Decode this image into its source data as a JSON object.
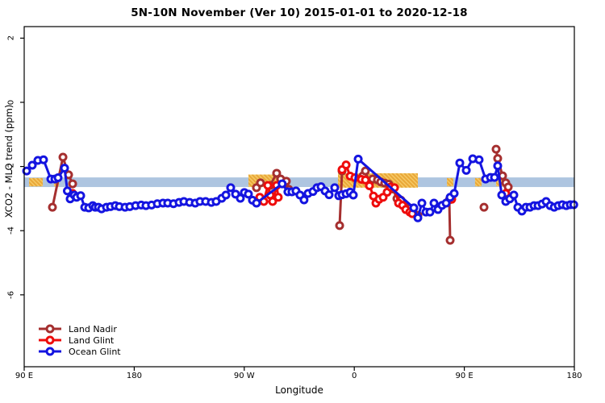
{
  "title": "5N-10N November (Ver 10)   2015-01-01 to 2020-12-18",
  "chart_data": {
    "type": "line",
    "title": "5N-10N November (Ver 10)   2015-01-01 to 2020-12-18",
    "xlabel": "Longitude",
    "ylabel": "XCO2 - MLO trend (ppm)",
    "x_axis": {
      "range": [
        90,
        540
      ],
      "note": "longitude axis spans 450 deg, wrapping: 90E,180,90W,0,90E,180",
      "ticks": [
        {
          "value": 90,
          "label": "90 E"
        },
        {
          "value": 180,
          "label": "180"
        },
        {
          "value": 270,
          "label": "90 W"
        },
        {
          "value": 360,
          "label": "0"
        },
        {
          "value": 450,
          "label": "90 E"
        },
        {
          "value": 540,
          "label": "180"
        }
      ]
    },
    "y_axis": {
      "range": [
        -8.24,
        2.36
      ],
      "ticks": [
        {
          "value": 2,
          "label": "2"
        },
        {
          "value": 0,
          "label": "0"
        },
        {
          "value": -2,
          "label": "-2"
        },
        {
          "value": -4,
          "label": "-4"
        },
        {
          "value": -6,
          "label": "-6"
        }
      ]
    },
    "grid": false,
    "legend_position": "bottom-left-inside",
    "reference_band": {
      "y_from": -2.34,
      "y_to": -2.64,
      "color": "#aec5e0"
    },
    "highlight_segments": {
      "color": "#f5c966",
      "hatch_color": "#e9a838",
      "segments": [
        {
          "from": 94.0,
          "to": 105.2,
          "top": -2.36,
          "bottom": -2.62
        },
        {
          "from": 114.4,
          "to": 118.4,
          "top": -2.36,
          "bottom": -2.62
        },
        {
          "from": 273.4,
          "to": 296.5,
          "top": -2.25,
          "bottom": -2.64
        },
        {
          "from": 346.7,
          "to": 412.0,
          "top": -2.21,
          "bottom": -2.66
        },
        {
          "from": 435.8,
          "to": 441.0,
          "top": -2.36,
          "bottom": -2.62
        },
        {
          "from": 458.8,
          "to": 464.1,
          "top": -2.36,
          "bottom": -2.62
        },
        {
          "from": 476.0,
          "to": 483.5,
          "top": -2.36,
          "bottom": -2.62
        }
      ]
    },
    "series": [
      {
        "name": "Land Nadir",
        "color": "#a52f2f",
        "groups": [
          [
            [
              113.1,
              -3.27
            ],
            [
              121.7,
              -1.71
            ],
            [
              126.3,
              -2.26
            ],
            [
              129.6,
              -2.54
            ]
          ],
          [
            [
              280.0,
              -2.66
            ],
            [
              283.3,
              -2.51
            ],
            [
              291.2,
              -2.59
            ],
            [
              296.5,
              -2.21
            ],
            [
              299.8,
              -2.39
            ],
            [
              304.4,
              -2.46
            ],
            [
              306.4,
              -2.71
            ]
          ],
          [
            [
              348.0,
              -3.84
            ],
            [
              350.0,
              -2.14
            ]
          ],
          [
            [
              367.1,
              -2.29
            ],
            [
              369.1,
              -2.14
            ],
            [
              372.4,
              -2.51
            ],
            [
              375.0,
              -2.39
            ],
            [
              379.0,
              -2.42
            ],
            [
              381.6,
              -2.48
            ],
            [
              384.9,
              -2.52
            ],
            [
              388.2,
              -2.55
            ],
            [
              391.6,
              -2.7
            ],
            [
              394.9,
              -3.0
            ],
            [
              398.2,
              -3.05
            ],
            [
              402.1,
              -3.27
            ],
            [
              405.4,
              -3.3
            ],
            [
              408.7,
              -3.47
            ],
            [
              412.0,
              -3.52
            ]
          ],
          [
            [
              437.7,
              -3.04
            ],
            [
              438.4,
              -4.3
            ]
          ],
          [
            [
              466.1,
              -3.27
            ]
          ],
          [
            [
              476.0,
              -1.46
            ],
            [
              477.3,
              -1.75
            ],
            [
              481.3,
              -2.29
            ],
            [
              483.9,
              -2.51
            ],
            [
              485.9,
              -2.64
            ]
          ]
        ]
      },
      {
        "name": "Land Glint",
        "color": "#ee0c0c",
        "groups": [
          [
            [
              129.6,
              -2.84
            ]
          ],
          [
            [
              282.7,
              -2.96
            ],
            [
              286.0,
              -3.09
            ],
            [
              289.3,
              -2.59
            ],
            [
              291.2,
              -2.89
            ],
            [
              293.2,
              -3.09
            ],
            [
              296.5,
              -2.59
            ],
            [
              297.8,
              -2.96
            ]
          ],
          [
            [
              350.0,
              -2.1
            ],
            [
              353.3,
              -1.95
            ],
            [
              356.6,
              -2.3
            ],
            [
              360.5,
              -2.35
            ],
            [
              365.8,
              -2.4
            ],
            [
              369.1,
              -2.42
            ],
            [
              372.4,
              -2.6
            ],
            [
              375.7,
              -2.92
            ],
            [
              377.7,
              -3.14
            ],
            [
              380.3,
              -3.02
            ],
            [
              383.6,
              -2.96
            ],
            [
              386.9,
              -2.8
            ],
            [
              389.6,
              -2.64
            ],
            [
              392.9,
              -2.66
            ],
            [
              396.2,
              -3.14
            ],
            [
              399.5,
              -3.21
            ],
            [
              402.1,
              -3.34
            ],
            [
              405.4,
              -3.42
            ],
            [
              407.4,
              -3.47
            ]
          ],
          [
            [
              439.7,
              -3.02
            ]
          ],
          [
            [
              483.9,
              -2.84
            ]
          ]
        ]
      },
      {
        "name": "Ocean Glint",
        "color": "#1414e0",
        "groups": [
          [
            [
              92.0,
              -2.14
            ],
            [
              96.6,
              -1.96
            ],
            [
              101.2,
              -1.81
            ],
            [
              105.8,
              -1.79
            ],
            [
              111.8,
              -2.39
            ],
            [
              115.1,
              -2.39
            ],
            [
              117.7,
              -2.35
            ],
            [
              123.0,
              -2.05
            ],
            [
              125.3,
              -2.76
            ],
            [
              127.6,
              -3.01
            ],
            [
              130.9,
              -2.89
            ],
            [
              132.9,
              -2.96
            ],
            [
              136.2,
              -2.91
            ],
            [
              139.5,
              -3.27
            ],
            [
              142.8,
              -3.29
            ],
            [
              146.1,
              -3.22
            ],
            [
              148.1,
              -3.27
            ],
            [
              150.7,
              -3.27
            ],
            [
              153.3,
              -3.32
            ],
            [
              157.3,
              -3.27
            ],
            [
              160.6,
              -3.25
            ],
            [
              164.5,
              -3.22
            ],
            [
              167.8,
              -3.25
            ],
            [
              172.5,
              -3.27
            ],
            [
              176.4,
              -3.25
            ],
            [
              181.1,
              -3.22
            ],
            [
              185.7,
              -3.2
            ],
            [
              189.6,
              -3.22
            ],
            [
              194.2,
              -3.2
            ],
            [
              198.9,
              -3.16
            ],
            [
              203.5,
              -3.14
            ],
            [
              207.4,
              -3.14
            ],
            [
              212.1,
              -3.16
            ],
            [
              216.7,
              -3.12
            ],
            [
              220.6,
              -3.09
            ],
            [
              225.3,
              -3.12
            ],
            [
              229.9,
              -3.14
            ],
            [
              233.8,
              -3.09
            ],
            [
              238.4,
              -3.09
            ],
            [
              243.1,
              -3.12
            ],
            [
              247.0,
              -3.09
            ],
            [
              251.6,
              -2.99
            ],
            [
              255.0,
              -2.89
            ],
            [
              258.9,
              -2.66
            ],
            [
              262.9,
              -2.86
            ],
            [
              266.8,
              -2.99
            ],
            [
              270.1,
              -2.81
            ],
            [
              273.4,
              -2.86
            ],
            [
              276.7,
              -3.05
            ],
            [
              280.0,
              -3.14
            ],
            [
              301.0,
              -2.54
            ],
            [
              305.7,
              -2.79
            ],
            [
              309.0,
              -2.79
            ],
            [
              312.3,
              -2.76
            ],
            [
              315.6,
              -2.89
            ],
            [
              318.9,
              -3.04
            ],
            [
              322.2,
              -2.84
            ],
            [
              326.2,
              -2.78
            ],
            [
              329.5,
              -2.66
            ],
            [
              332.8,
              -2.63
            ],
            [
              336.1,
              -2.76
            ],
            [
              339.4,
              -2.88
            ],
            [
              344.0,
              -2.66
            ],
            [
              347.3,
              -2.91
            ],
            [
              350.0,
              -2.88
            ],
            [
              353.3,
              -2.85
            ],
            [
              356.6,
              -2.8
            ],
            [
              359.2,
              -2.89
            ],
            [
              363.2,
              -1.77
            ],
            [
              408.7,
              -3.29
            ],
            [
              412.0,
              -3.6
            ],
            [
              415.3,
              -3.14
            ],
            [
              418.6,
              -3.42
            ],
            [
              421.9,
              -3.42
            ],
            [
              425.2,
              -3.14
            ],
            [
              428.5,
              -3.34
            ],
            [
              431.8,
              -3.21
            ],
            [
              435.1,
              -3.14
            ],
            [
              438.4,
              -2.96
            ],
            [
              441.7,
              -2.84
            ],
            [
              446.3,
              -1.89
            ],
            [
              451.6,
              -2.12
            ],
            [
              456.9,
              -1.76
            ],
            [
              462.1,
              -1.79
            ],
            [
              467.4,
              -2.39
            ],
            [
              471.4,
              -2.34
            ],
            [
              474.7,
              -2.34
            ],
            [
              477.3,
              -1.98
            ],
            [
              480.6,
              -2.89
            ],
            [
              483.9,
              -3.09
            ],
            [
              487.2,
              -3.01
            ],
            [
              490.5,
              -2.89
            ],
            [
              493.8,
              -3.27
            ],
            [
              497.1,
              -3.39
            ],
            [
              500.4,
              -3.27
            ],
            [
              503.7,
              -3.27
            ],
            [
              507.0,
              -3.22
            ],
            [
              510.3,
              -3.22
            ],
            [
              513.6,
              -3.17
            ],
            [
              516.9,
              -3.09
            ],
            [
              520.2,
              -3.22
            ],
            [
              523.5,
              -3.27
            ],
            [
              526.8,
              -3.22
            ],
            [
              530.1,
              -3.19
            ],
            [
              533.4,
              -3.22
            ],
            [
              536.7,
              -3.19
            ],
            [
              539.5,
              -3.19
            ]
          ]
        ]
      }
    ]
  },
  "legend": {
    "items": [
      {
        "label": "Land Nadir"
      },
      {
        "label": "Land Glint"
      },
      {
        "label": "Ocean Glint"
      }
    ]
  }
}
